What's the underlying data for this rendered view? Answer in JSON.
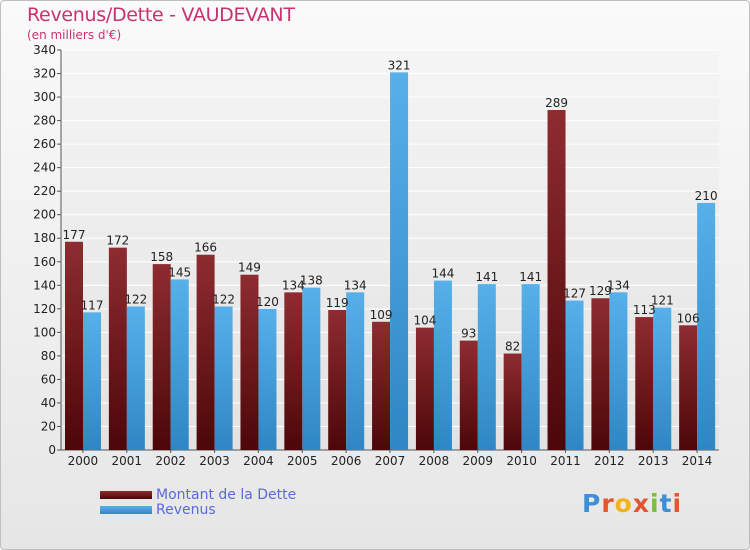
{
  "title": "Revenus/Dette - VAUDEVANT",
  "subtitle": "(en milliers d'€)",
  "logo": {
    "letters": [
      "P",
      "r",
      "o",
      "x",
      "i",
      "t",
      "i"
    ]
  },
  "colors": {
    "dette": "#7a1c1f",
    "revenus": "#4aa6e6",
    "title": "#c8336f",
    "legend_text": "#5a6ad8"
  },
  "chart_data": {
    "type": "bar",
    "title": "Revenus/Dette - VAUDEVANT",
    "ylabel": "(en milliers d'€)",
    "xlabel": "",
    "ylim": [
      0,
      340
    ],
    "ytick_step": 20,
    "grid": true,
    "categories": [
      "2000",
      "2001",
      "2002",
      "2003",
      "2004",
      "2005",
      "2006",
      "2007",
      "2008",
      "2009",
      "2010",
      "2011",
      "2012",
      "2013",
      "2014"
    ],
    "series": [
      {
        "name": "Montant de la Dette",
        "values": [
          177,
          172,
          158,
          166,
          149,
          134,
          119,
          109,
          104,
          93,
          82,
          289,
          129,
          113,
          106
        ]
      },
      {
        "name": "Revenus",
        "values": [
          117,
          122,
          145,
          122,
          120,
          138,
          134,
          321,
          144,
          141,
          141,
          127,
          134,
          121,
          210
        ]
      }
    ],
    "legend": [
      "Montant de la Dette",
      "Revenus"
    ],
    "legend_position": "bottom-left"
  }
}
